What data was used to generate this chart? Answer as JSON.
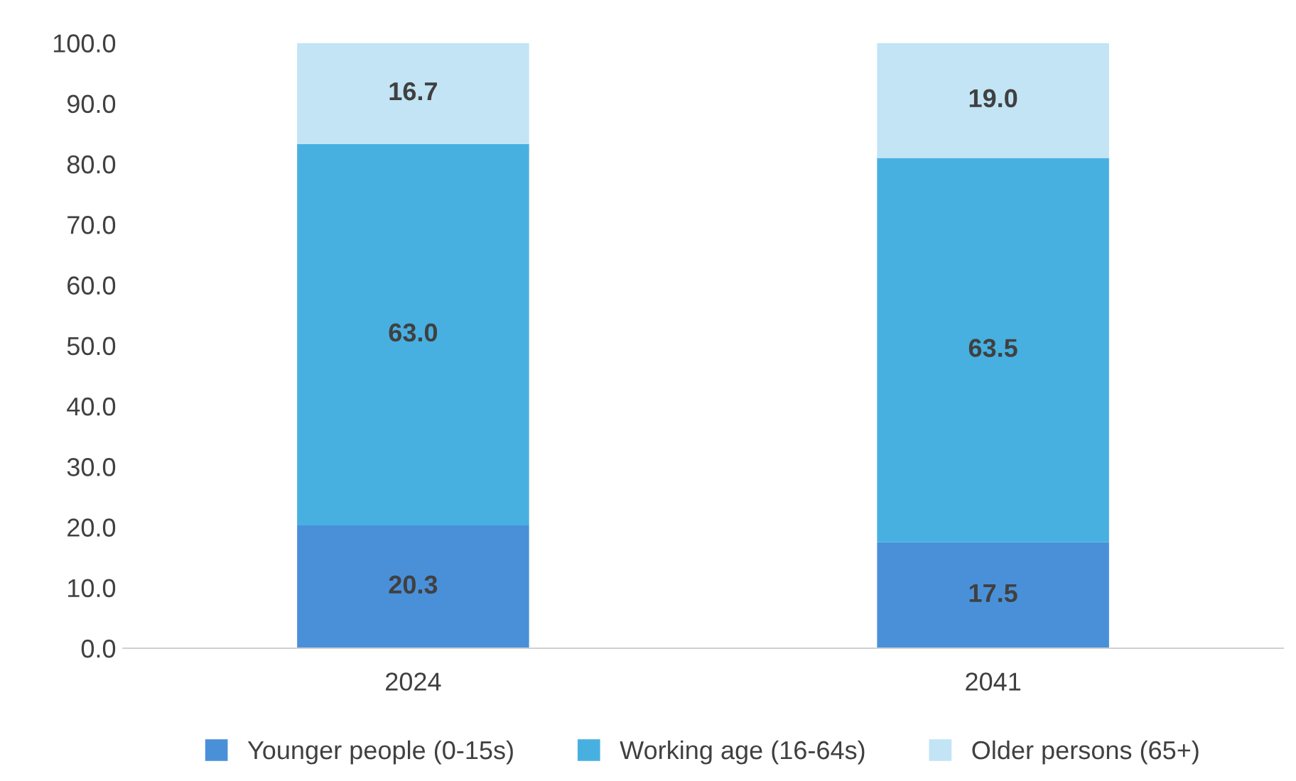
{
  "chart_data": {
    "type": "bar",
    "stacked": true,
    "categories": [
      "2024",
      "2041"
    ],
    "series": [
      {
        "name": "Younger people (0-15s)",
        "color": "#4a90d9",
        "values": [
          20.3,
          17.5
        ],
        "value_labels": [
          "20.3",
          "17.5"
        ]
      },
      {
        "name": "Working age (16-64s)",
        "color": "#47b0e0",
        "values": [
          63.0,
          63.5
        ],
        "value_labels": [
          "63.0",
          "63.5"
        ]
      },
      {
        "name": "Older persons (65+)",
        "color": "#c2e4f5",
        "values": [
          16.7,
          19.0
        ],
        "value_labels": [
          "16.7",
          "19.0"
        ]
      }
    ],
    "ylim": [
      0,
      100
    ],
    "yticks": [
      {
        "value": 0,
        "label": "0.0"
      },
      {
        "value": 10,
        "label": "10.0"
      },
      {
        "value": 20,
        "label": "20.0"
      },
      {
        "value": 30,
        "label": "30.0"
      },
      {
        "value": 40,
        "label": "40.0"
      },
      {
        "value": 50,
        "label": "50.0"
      },
      {
        "value": 60,
        "label": "60.0"
      },
      {
        "value": 70,
        "label": "70.0"
      },
      {
        "value": 80,
        "label": "80.0"
      },
      {
        "value": 90,
        "label": "90.0"
      },
      {
        "value": 100,
        "label": "100.0"
      }
    ],
    "legend": "bottom",
    "grid": false
  }
}
